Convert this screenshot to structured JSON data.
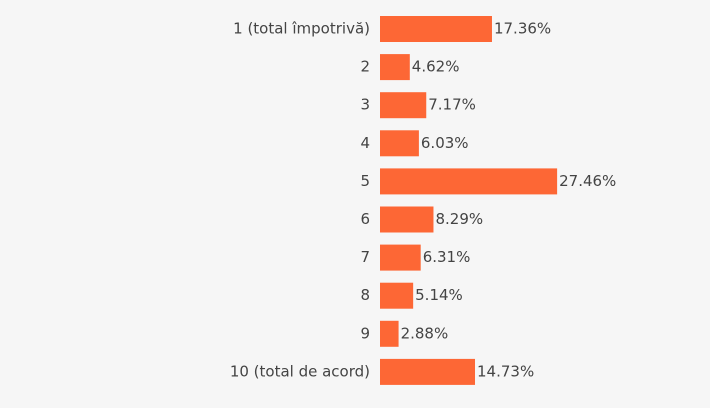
{
  "chart_data": {
    "type": "bar",
    "orientation": "horizontal",
    "color": "#fd6735",
    "categories": [
      "1 (total împotrivă)",
      "2",
      "3",
      "4",
      "5",
      "6",
      "7",
      "8",
      "9",
      "10 (total de acord)"
    ],
    "values": [
      17.36,
      4.62,
      7.17,
      6.03,
      27.46,
      8.29,
      6.31,
      5.14,
      2.88,
      14.73
    ],
    "value_labels": [
      "17.36%",
      "4.62%",
      "7.17%",
      "6.03%",
      "27.46%",
      "8.29%",
      "6.31%",
      "5.14%",
      "2.88%",
      "14.73%"
    ]
  }
}
